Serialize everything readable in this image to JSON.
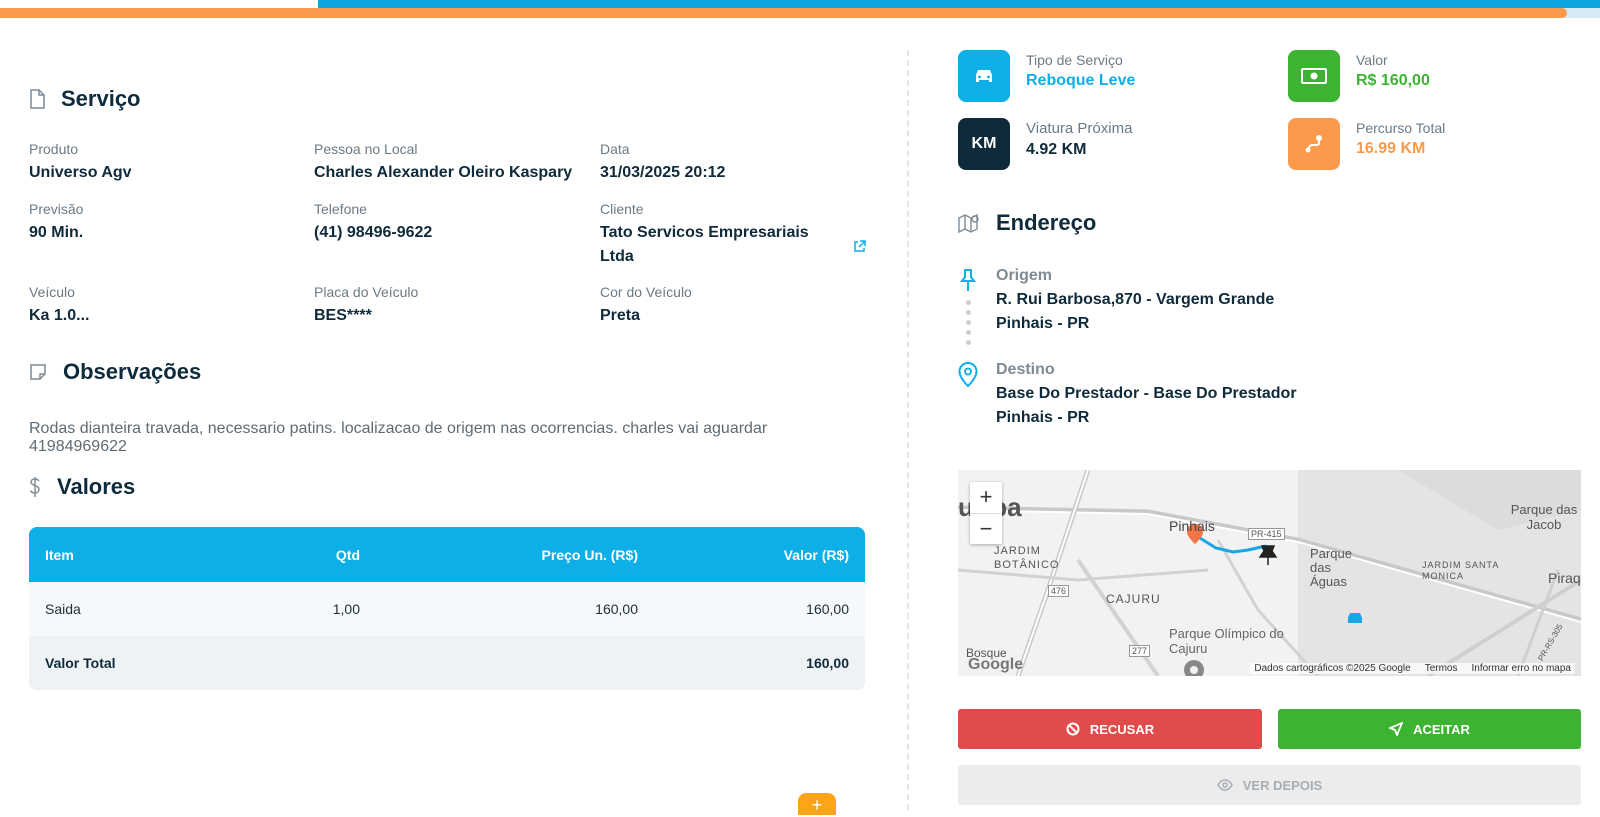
{
  "servico": {
    "title": "Serviço",
    "fields": [
      {
        "label": "Produto",
        "value": "Universo Agv"
      },
      {
        "label": "Pessoa no Local",
        "value": "Charles Alexander Oleiro Kaspary"
      },
      {
        "label": "Data",
        "value": "31/03/2025 20:12"
      },
      {
        "label": "Previsão",
        "value": "90 Min."
      },
      {
        "label": "Telefone",
        "value": "(41) 98496-9622"
      },
      {
        "label": "Cliente",
        "value": "Tato Servicos Empresariais Ltda"
      },
      {
        "label": "Veículo",
        "value": "Ka 1.0..."
      },
      {
        "label": "Placa do Veículo",
        "value": "BES****"
      },
      {
        "label": "Cor do Veículo",
        "value": "Preta"
      }
    ]
  },
  "observacoes": {
    "title": "Observações",
    "text": "Rodas dianteira travada, necessario patins. localizacao de origem nas ocorrencias. charles vai aguardar 41984969622"
  },
  "valores": {
    "title": "Valores",
    "headers": [
      "Item",
      "Qtd",
      "Preço Un. (R$)",
      "Valor (R$)"
    ],
    "rows": [
      {
        "item": "Saida",
        "qtd": "1,00",
        "preco": "160,00",
        "valor": "160,00"
      }
    ],
    "total_label": "Valor Total",
    "total_value": "160,00"
  },
  "fab_label": "+",
  "cards": {
    "tipo": {
      "label": "Tipo de Serviço",
      "value": "Reboque Leve",
      "color": "#0eaee6"
    },
    "valor": {
      "label": "Valor",
      "value": "R$ 160,00",
      "color": "#3cb431"
    },
    "viatura": {
      "label": "Viatura Próxima",
      "value": "4.92 KM",
      "icon_text": "KM",
      "color": "#0f2a3a"
    },
    "percurso": {
      "label": "Percurso Total",
      "value": "16.99 KM",
      "color": "#fb9a4a"
    }
  },
  "endereco": {
    "title": "Endereço",
    "origem": {
      "label": "Origem",
      "line1": "R. Rui Barbosa,870 - Vargem Grande",
      "line2": "Pinhais - PR"
    },
    "destino": {
      "label": "Destino",
      "line1": "Base Do Prestador - Base Do Prestador",
      "line2": "Pinhais - PR"
    }
  },
  "map": {
    "zoom_in": "+",
    "zoom_out": "−",
    "labels": {
      "pinhais": "Pinhais",
      "pr415": "PR-415",
      "parque_aguas": "Parque das Águas",
      "jardim_botanico": "JARDIM BOTÂNICO",
      "cajuru": "CAJURU",
      "parque_olimpico": "Parque Olímpico do Cajuru",
      "jardim_santa_monica": "JARDIM SANTA MONICA",
      "parque_jacob": "Parque das Jacob",
      "piraq": "Piraq",
      "r476": "476",
      "r277": "277",
      "bosque": "Bosque",
      "uriba": "uriba",
      "prs": "PR-RS-305"
    },
    "google": "Google",
    "attribution": "Dados cartográficos ©2025 Google",
    "terms": "Termos",
    "report": "Informar erro no mapa"
  },
  "actions": {
    "recusar": "RECUSAR",
    "aceitar": "ACEITAR",
    "ver_depois": "VER DEPOIS"
  },
  "colors": {
    "accent_blue": "#0eaee6",
    "orange": "#fb9a4a",
    "green": "#3cb431",
    "red": "#e04b4b"
  }
}
